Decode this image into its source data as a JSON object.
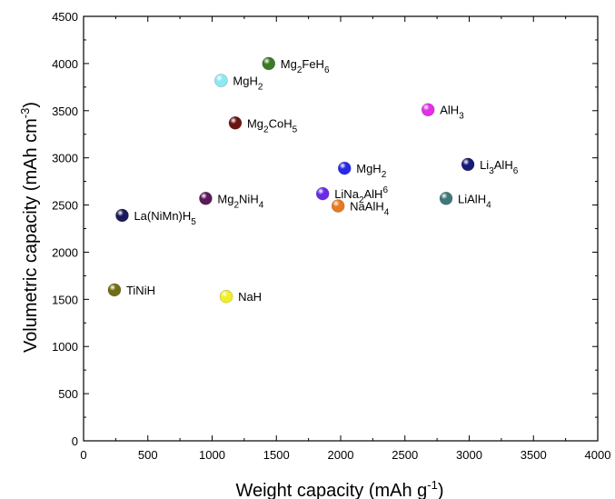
{
  "chart_data": {
    "type": "scatter",
    "xlabel": "Weight capacity (mAh g",
    "xlabel_sup": "-1",
    "xlabel_end": ")",
    "ylabel": "Volumetric capacity (mAh cm",
    "ylabel_sup": "-3",
    "ylabel_end": ")",
    "xlim": [
      0,
      4000
    ],
    "ylim": [
      0,
      4500
    ],
    "xticks": [
      "0",
      "500",
      "1000",
      "1500",
      "2000",
      "2500",
      "3000",
      "3500",
      "4000"
    ],
    "yticks": [
      "0",
      "500",
      "1000",
      "1500",
      "2000",
      "2500",
      "3000",
      "3500",
      "4000",
      "4500"
    ],
    "grid": false,
    "points": [
      {
        "x": 1440,
        "y": 4000,
        "color": "#3c7a25",
        "label": [
          [
            "Mg"
          ],
          [
            "2",
            "sub"
          ],
          [
            "FeH"
          ],
          [
            "6",
            "sub"
          ]
        ]
      },
      {
        "x": 1070,
        "y": 3820,
        "color": "#8ee8f4",
        "label": [
          [
            "MgH"
          ],
          [
            "2",
            "sub"
          ]
        ]
      },
      {
        "x": 1180,
        "y": 3370,
        "color": "#6b1414",
        "label": [
          [
            "Mg"
          ],
          [
            "2",
            "sub"
          ],
          [
            "CoH"
          ],
          [
            "5",
            "sub"
          ]
        ]
      },
      {
        "x": 2680,
        "y": 3510,
        "color": "#e030e8",
        "label": [
          [
            "AlH"
          ],
          [
            "3",
            "sub"
          ]
        ]
      },
      {
        "x": 2030,
        "y": 2890,
        "color": "#2828e8",
        "label": [
          [
            "MgH"
          ],
          [
            "2",
            "sub"
          ]
        ]
      },
      {
        "x": 2990,
        "y": 2930,
        "color": "#1a1a78",
        "label": [
          [
            "Li"
          ],
          [
            "3",
            "sub"
          ],
          [
            "AlH"
          ],
          [
            "6",
            "sub"
          ]
        ]
      },
      {
        "x": 1860,
        "y": 2620,
        "color": "#6a2ae8",
        "label": [
          [
            "LiNa"
          ],
          [
            "2",
            "sub"
          ],
          [
            "AlH"
          ],
          [
            "6",
            "sup"
          ]
        ]
      },
      {
        "x": 1980,
        "y": 2490,
        "color": "#e87a20",
        "label": [
          [
            "NaAlH"
          ],
          [
            "4",
            "sub"
          ]
        ]
      },
      {
        "x": 2820,
        "y": 2570,
        "color": "#3e7878",
        "label": [
          [
            "LiAlH"
          ],
          [
            "4",
            "sub"
          ]
        ]
      },
      {
        "x": 950,
        "y": 2570,
        "color": "#5a1a5a",
        "label": [
          [
            "Mg"
          ],
          [
            "2",
            "sub"
          ],
          [
            "NiH"
          ],
          [
            "4",
            "sub"
          ]
        ]
      },
      {
        "x": 300,
        "y": 2390,
        "color": "#1a1a5a",
        "label": [
          [
            "La(NiMn)H"
          ],
          [
            "5",
            "sub"
          ]
        ]
      },
      {
        "x": 240,
        "y": 1600,
        "color": "#6e6e14",
        "label": [
          [
            "TiNiH"
          ]
        ]
      },
      {
        "x": 1110,
        "y": 1530,
        "color": "#f2ee24",
        "label": [
          [
            "NaH"
          ]
        ]
      }
    ]
  }
}
